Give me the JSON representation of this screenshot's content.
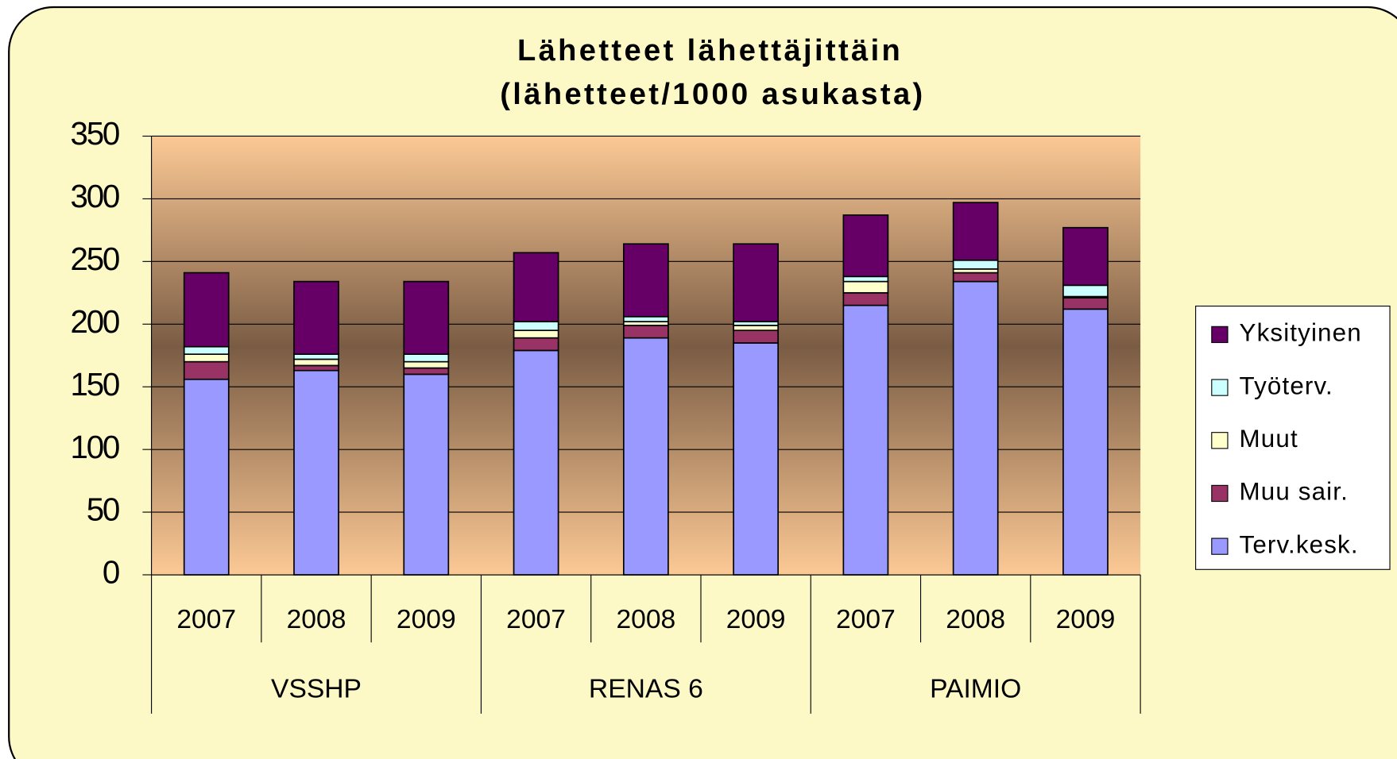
{
  "chart_data": {
    "type": "stacked_bar",
    "title": "Lähetteet lähettäjittäin",
    "subtitle": "(lähetteet/1000 asukasta)",
    "groups": [
      {
        "name": "VSSHP",
        "categories": [
          "2007",
          "2008",
          "2009"
        ]
      },
      {
        "name": "RENAS 6",
        "categories": [
          "2007",
          "2008",
          "2009"
        ]
      },
      {
        "name": "PAIMIO",
        "categories": [
          "2007",
          "2008",
          "2009"
        ]
      }
    ],
    "series": [
      {
        "name": "Terv.kesk.",
        "color": "#9999ff",
        "values": [
          156,
          163,
          160,
          179,
          189,
          185,
          215,
          234,
          212
        ]
      },
      {
        "name": "Muu sair.",
        "color": "#993366",
        "values": [
          14,
          4,
          5,
          10,
          10,
          10,
          10,
          7,
          9
        ]
      },
      {
        "name": "Muut",
        "color": "#ffffcc",
        "values": [
          6,
          5,
          5,
          6,
          3,
          4,
          9,
          3,
          1
        ]
      },
      {
        "name": "Työterv.",
        "color": "#ccffff",
        "values": [
          6,
          4,
          6,
          7,
          4,
          3,
          4,
          7,
          9
        ]
      },
      {
        "name": "Yksityinen",
        "color": "#660066",
        "values": [
          59,
          58,
          58,
          55,
          58,
          62,
          49,
          46,
          46
        ]
      }
    ],
    "ylim": [
      0,
      350
    ],
    "yticks": [
      0,
      50,
      100,
      150,
      200,
      250,
      300,
      350
    ],
    "grid": true,
    "legend": "right"
  }
}
